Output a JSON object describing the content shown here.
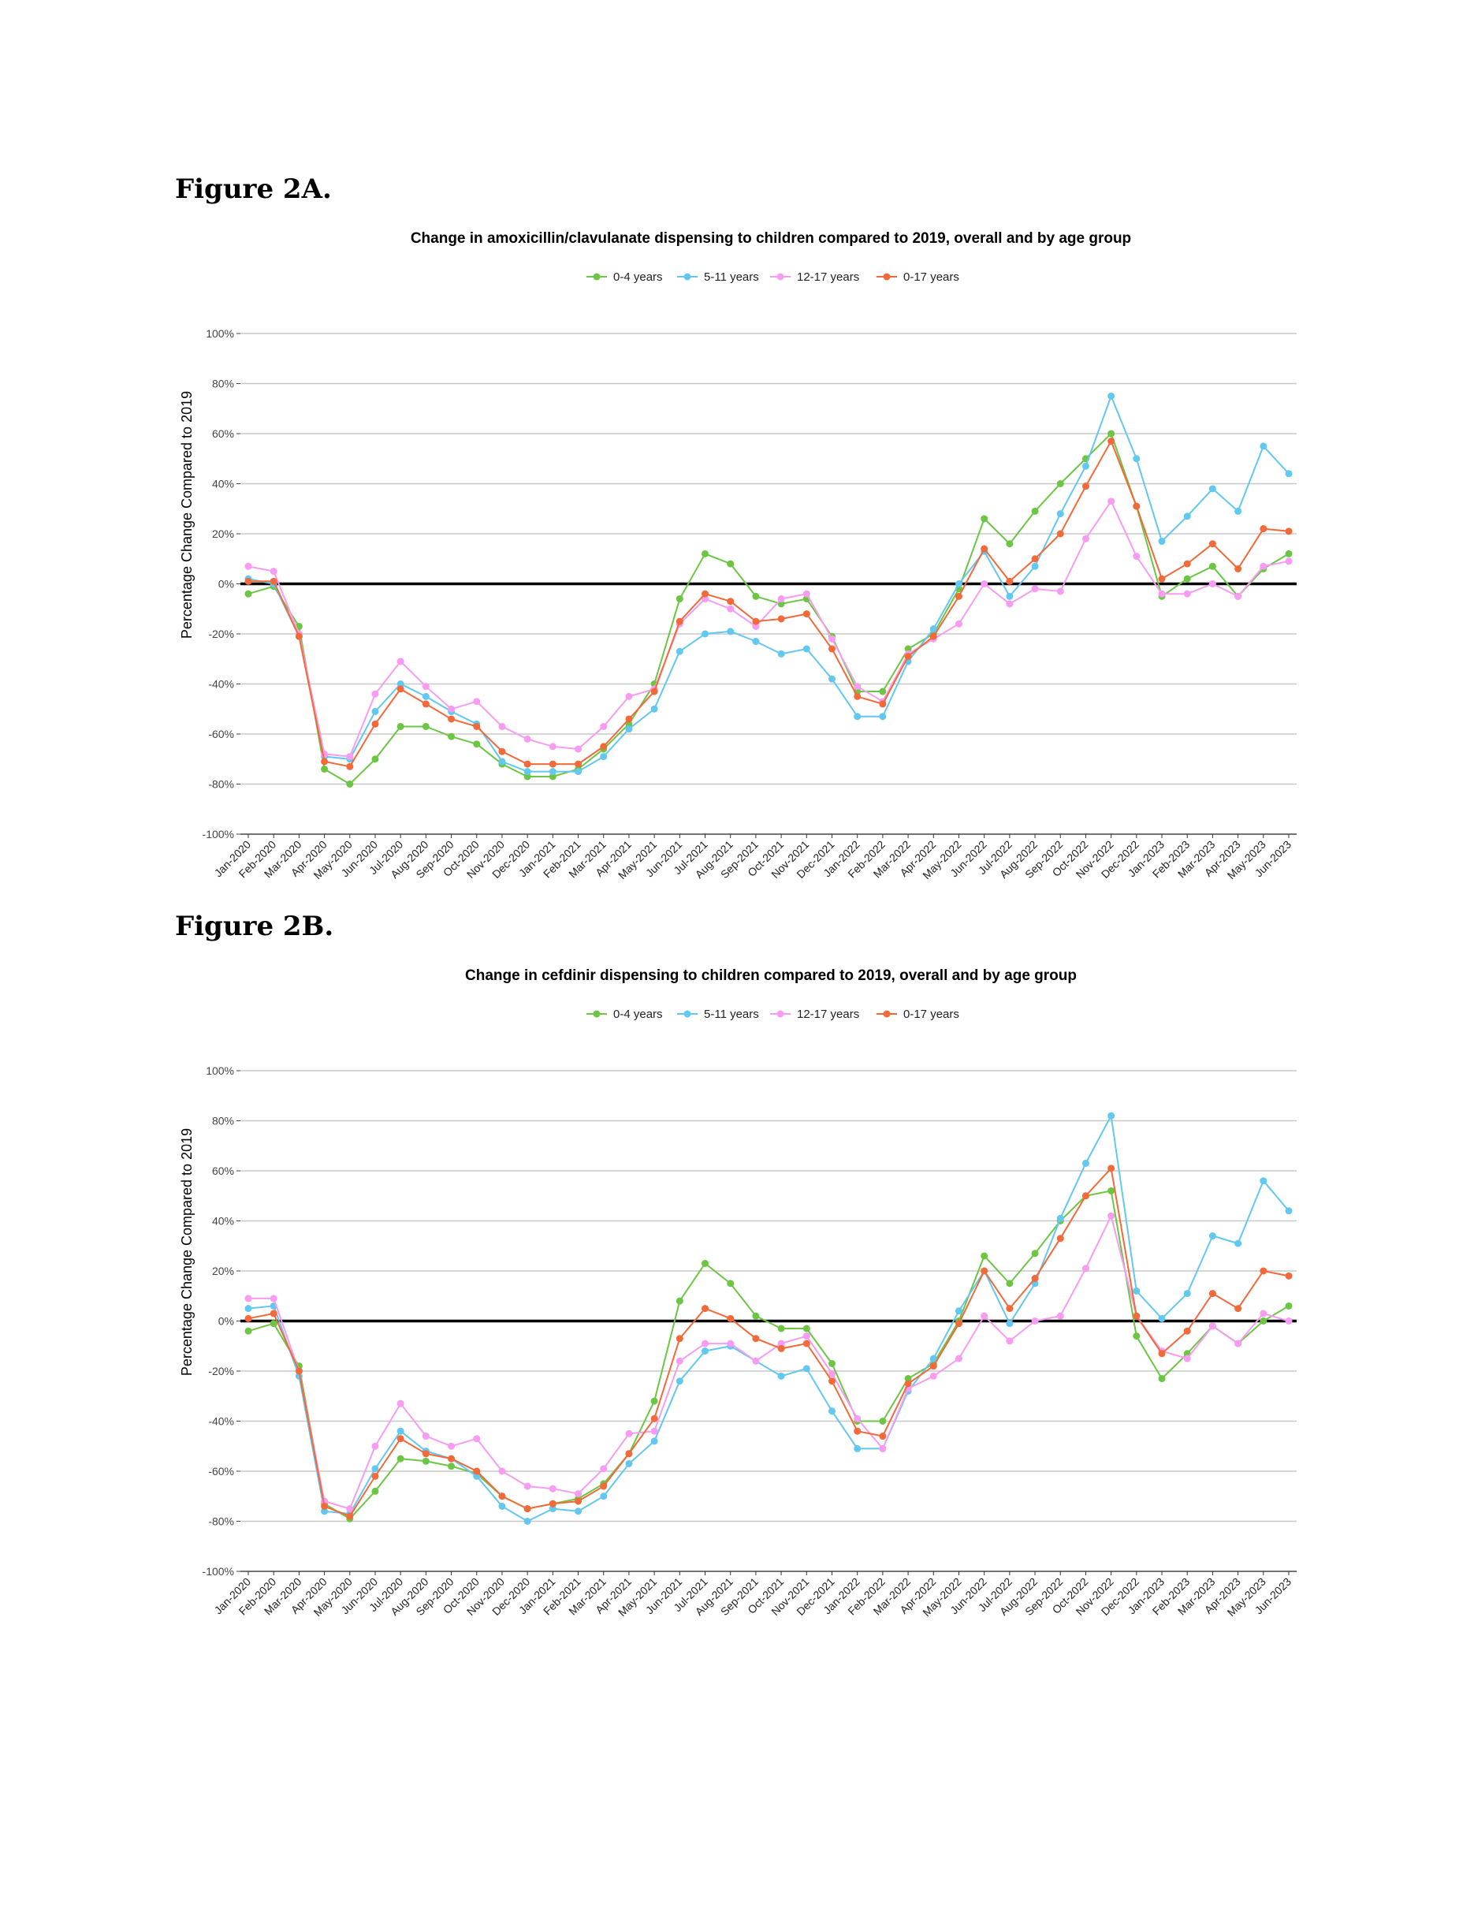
{
  "figures": [
    {
      "label": "Figure 2A."
    },
    {
      "label": "Figure 2B."
    }
  ],
  "chart_data": [
    {
      "type": "line",
      "title": "Change in amoxicillin/clavulanate dispensing to children compared to 2019, overall and by age group",
      "xlabel": "",
      "ylabel": "Percentage Change Compared to 2019",
      "ylim": [
        -100,
        100
      ],
      "yticks": [
        "-100%",
        "-80%",
        "-60%",
        "-40%",
        "-20%",
        "0%",
        "20%",
        "40%",
        "60%",
        "80%",
        "100%"
      ],
      "grid": true,
      "legend_position": "top",
      "categories": [
        "Jan-2020",
        "Feb-2020",
        "Mar-2020",
        "Apr-2020",
        "May-2020",
        "Jun-2020",
        "Jul-2020",
        "Aug-2020",
        "Sep-2020",
        "Oct-2020",
        "Nov-2020",
        "Dec-2020",
        "Jan-2021",
        "Feb-2021",
        "Mar-2021",
        "Apr-2021",
        "May-2021",
        "Jun-2021",
        "Jul-2021",
        "Aug-2021",
        "Sep-2021",
        "Oct-2021",
        "Nov-2021",
        "Dec-2021",
        "Jan-2022",
        "Feb-2022",
        "Mar-2022",
        "Apr-2022",
        "May-2022",
        "Jun-2022",
        "Jul-2022",
        "Aug-2022",
        "Sep-2022",
        "Oct-2022",
        "Nov-2022",
        "Dec-2022",
        "Jan-2023",
        "Feb-2023",
        "Mar-2023",
        "Apr-2023",
        "May-2023",
        "Jun-2023"
      ],
      "series": [
        {
          "name": "0-4 years",
          "color": "#6cc644",
          "values": [
            -4,
            -1,
            -17,
            -74,
            -80,
            -70,
            -57,
            -57,
            -61,
            -64,
            -72,
            -77,
            -77,
            -74,
            -66,
            -56,
            -40,
            -6,
            12,
            8,
            -5,
            -8,
            -6,
            -21,
            -43,
            -43,
            -26,
            -20,
            -2,
            26,
            16,
            29,
            40,
            50,
            60,
            31,
            -5,
            2,
            7,
            -5,
            6,
            12
          ]
        },
        {
          "name": "5-11 years",
          "color": "#62c8f0",
          "values": [
            2,
            0,
            -21,
            -69,
            -70,
            -51,
            -40,
            -45,
            -51,
            -56,
            -71,
            -75,
            -75,
            -75,
            -69,
            -58,
            -50,
            -27,
            -20,
            -19,
            -23,
            -28,
            -26,
            -38,
            -53,
            -53,
            -31,
            -18,
            0,
            13,
            -5,
            7,
            28,
            47,
            75,
            50,
            17,
            27,
            38,
            29,
            55,
            44
          ]
        },
        {
          "name": "12-17 years",
          "color": "#f79cf2",
          "values": [
            7,
            5,
            -20,
            -68,
            -69,
            -44,
            -31,
            -41,
            -50,
            -47,
            -57,
            -62,
            -65,
            -66,
            -57,
            -45,
            -42,
            -16,
            -6,
            -10,
            -17,
            -6,
            -4,
            -22,
            -41,
            -47,
            -28,
            -22,
            -16,
            0,
            -8,
            -2,
            -3,
            18,
            33,
            11,
            -4,
            -4,
            0,
            -5,
            7,
            9
          ]
        },
        {
          "name": "0-17 years",
          "color": "#f2693a",
          "values": [
            1,
            1,
            -21,
            -71,
            -73,
            -56,
            -42,
            -48,
            -54,
            -57,
            -67,
            -72,
            -72,
            -72,
            -65,
            -54,
            -43,
            -15,
            -4,
            -7,
            -15,
            -14,
            -12,
            -26,
            -45,
            -48,
            -29,
            -21,
            -5,
            14,
            1,
            10,
            20,
            39,
            57,
            31,
            2,
            8,
            16,
            6,
            22,
            21
          ]
        }
      ]
    },
    {
      "type": "line",
      "title": "Change in cefdinir dispensing to children compared to 2019, overall and by age group",
      "xlabel": "",
      "ylabel": "Percentage Change Compared to 2019",
      "ylim": [
        -100,
        100
      ],
      "yticks": [
        "-100%",
        "-80%",
        "-60%",
        "-40%",
        "-20%",
        "0%",
        "20%",
        "40%",
        "60%",
        "80%",
        "100%"
      ],
      "grid": true,
      "legend_position": "top",
      "categories": [
        "Jan-2020",
        "Feb-2020",
        "Mar-2020",
        "Apr-2020",
        "May-2020",
        "Jun-2020",
        "Jul-2020",
        "Aug-2020",
        "Sep-2020",
        "Oct-2020",
        "Nov-2020",
        "Dec-2020",
        "Jan-2021",
        "Feb-2021",
        "Mar-2021",
        "Apr-2021",
        "May-2021",
        "Jun-2021",
        "Jul-2021",
        "Aug-2021",
        "Sep-2021",
        "Oct-2021",
        "Nov-2021",
        "Dec-2021",
        "Jan-2022",
        "Feb-2022",
        "Mar-2022",
        "Apr-2022",
        "May-2022",
        "Jun-2022",
        "Jul-2022",
        "Aug-2022",
        "Sep-2022",
        "Oct-2022",
        "Nov-2022",
        "Dec-2022",
        "Jan-2023",
        "Feb-2023",
        "Mar-2023",
        "Apr-2023",
        "May-2023",
        "Jun-2023"
      ],
      "series": [
        {
          "name": "0-4 years",
          "color": "#6cc644",
          "values": [
            -4,
            -1,
            -18,
            -73,
            -79,
            -68,
            -55,
            -56,
            -58,
            -61,
            -70,
            -75,
            -73,
            -71,
            -65,
            -53,
            -32,
            8,
            23,
            15,
            2,
            -3,
            -3,
            -17,
            -40,
            -40,
            -23,
            -17,
            0,
            26,
            15,
            27,
            40,
            50,
            52,
            -6,
            -23,
            -13,
            -2,
            -9,
            0,
            6
          ]
        },
        {
          "name": "5-11 years",
          "color": "#62c8f0",
          "values": [
            5,
            6,
            -22,
            -76,
            -77,
            -59,
            -44,
            -52,
            -55,
            -62,
            -74,
            -80,
            -75,
            -76,
            -70,
            -57,
            -48,
            -24,
            -12,
            -10,
            -16,
            -22,
            -19,
            -36,
            -51,
            -51,
            -28,
            -15,
            4,
            20,
            -1,
            15,
            41,
            63,
            82,
            12,
            1,
            11,
            34,
            31,
            56,
            44
          ]
        },
        {
          "name": "12-17 years",
          "color": "#f79cf2",
          "values": [
            9,
            9,
            -20,
            -72,
            -75,
            -50,
            -33,
            -46,
            -50,
            -47,
            -60,
            -66,
            -67,
            -69,
            -59,
            -45,
            -44,
            -16,
            -9,
            -9,
            -16,
            -9,
            -6,
            -21,
            -39,
            -51,
            -27,
            -22,
            -15,
            2,
            -8,
            0,
            2,
            21,
            42,
            2,
            -12,
            -15,
            -2,
            -9,
            3,
            0
          ]
        },
        {
          "name": "0-17 years",
          "color": "#f2693a",
          "values": [
            1,
            3,
            -20,
            -74,
            -78,
            -62,
            -47,
            -53,
            -55,
            -60,
            -70,
            -75,
            -73,
            -72,
            -66,
            -53,
            -39,
            -7,
            5,
            1,
            -7,
            -11,
            -9,
            -24,
            -44,
            -46,
            -25,
            -18,
            -1,
            20,
            5,
            17,
            33,
            50,
            61,
            2,
            -13,
            -4,
            11,
            5,
            20,
            18
          ]
        }
      ]
    }
  ]
}
